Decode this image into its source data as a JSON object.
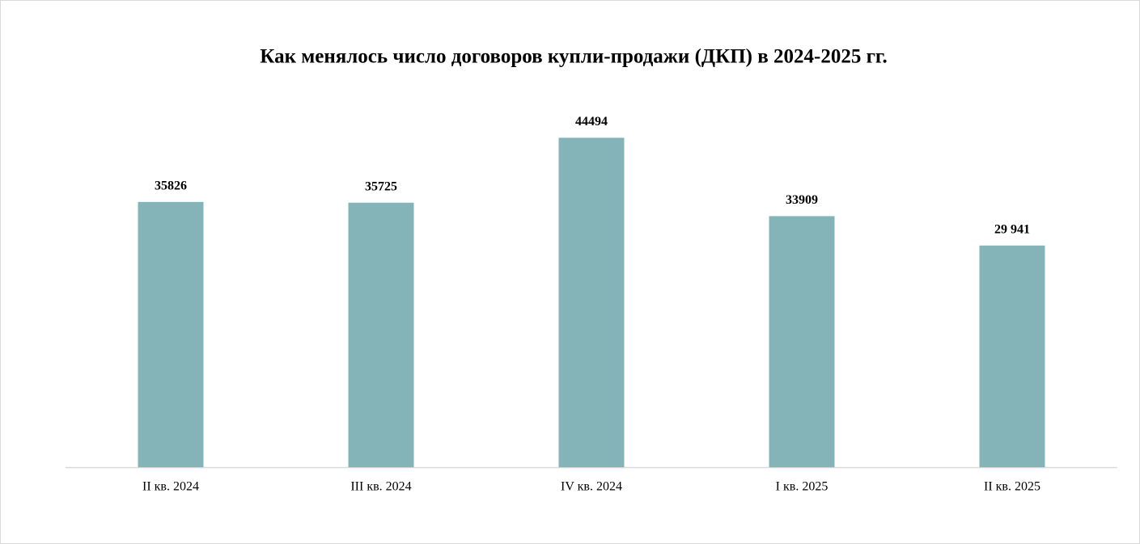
{
  "chart_data": {
    "type": "bar",
    "title": "Как менялось число договоров купли-продажи (ДКП) в 2024-2025 гг.",
    "categories": [
      "II кв. 2024",
      "III кв. 2024",
      "IV кв. 2024",
      "I кв. 2025",
      "II кв. 2025"
    ],
    "values": [
      35826,
      35725,
      44494,
      33909,
      29941
    ],
    "value_labels": [
      "35826",
      "35725",
      "44494",
      "33909",
      "29 941"
    ],
    "color": "#84b4b8",
    "ylim": [
      0,
      50000
    ]
  }
}
